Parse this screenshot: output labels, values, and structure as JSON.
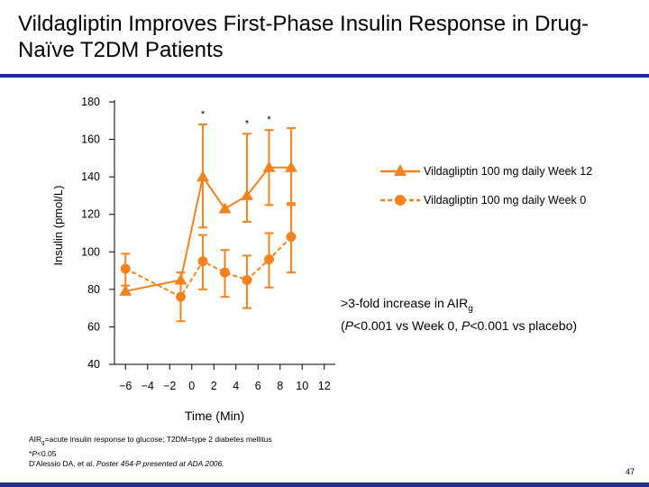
{
  "slide": {
    "title": "Vildagliptin Improves First-Phase Insulin Response in Drug-Naïve T2DM Patients",
    "annotation_line1": ">3-fold increase in AIR",
    "annotation_sub": "g",
    "annotation_line2_pre": "(",
    "annotation_p1": "P",
    "annotation_line2_mid": "<0.001 vs Week 0, ",
    "annotation_p2": "P",
    "annotation_line2_post": "<0.001 vs placebo)",
    "footnote1_pre": "AIR",
    "footnote1_sub": "g",
    "footnote1_post": "=acute insulin response to glucose; T2DM=type 2 diabetes mellitus",
    "footnote2_pre": "*",
    "footnote2_p": "P",
    "footnote2_post": "<0.05",
    "footnote3_pre": "D'Alessio DA, et al. ",
    "footnote3_italic": "Poster 454-P presented at ADA 2006.",
    "page_number": "47",
    "accent_color": "#1f2f8a"
  },
  "chart_data": {
    "type": "line",
    "title": "",
    "xlabel": "Time (Min)",
    "ylabel": "Insulin (pmol/L)",
    "ylim": [
      40,
      180
    ],
    "yticks": [
      40,
      60,
      80,
      100,
      120,
      140,
      160,
      180
    ],
    "xticks": [
      -6,
      -4,
      -2,
      0,
      2,
      4,
      6,
      8,
      10,
      12
    ],
    "xtick_labels": [
      "−6",
      "−4",
      "−2",
      "0",
      "2",
      "4",
      "6",
      "8",
      "10",
      "12"
    ],
    "xlim": [
      -7,
      13
    ],
    "legend_position": "right",
    "series": [
      {
        "name": "Vildagliptin 100 mg daily Week 12",
        "color": "#f58220",
        "marker": "triangle",
        "dashed": false,
        "x": [
          -6,
          -1,
          1,
          3,
          5,
          7,
          9
        ],
        "y": [
          79,
          85,
          140,
          123,
          130,
          145,
          145
        ],
        "err_low": [
          null,
          null,
          113,
          null,
          116,
          125,
          125
        ],
        "err_high": [
          null,
          null,
          168,
          null,
          163,
          165,
          166
        ],
        "point_labels": [
          "",
          "",
          "*",
          "",
          "*",
          "*",
          ""
        ]
      },
      {
        "name": "Vildagliptin 100 mg daily Week 0",
        "color": "#f58220",
        "marker": "circle",
        "dashed": true,
        "x": [
          -6,
          -1,
          1,
          3,
          5,
          7,
          9
        ],
        "y": [
          91,
          76,
          95,
          89,
          85,
          96,
          108
        ],
        "err_low": [
          82,
          63,
          80,
          76,
          70,
          81,
          89
        ],
        "err_high": [
          99,
          89,
          109,
          101,
          98,
          110,
          126
        ],
        "point_labels": [
          "",
          "",
          "",
          "",
          "",
          "",
          ""
        ]
      }
    ]
  }
}
